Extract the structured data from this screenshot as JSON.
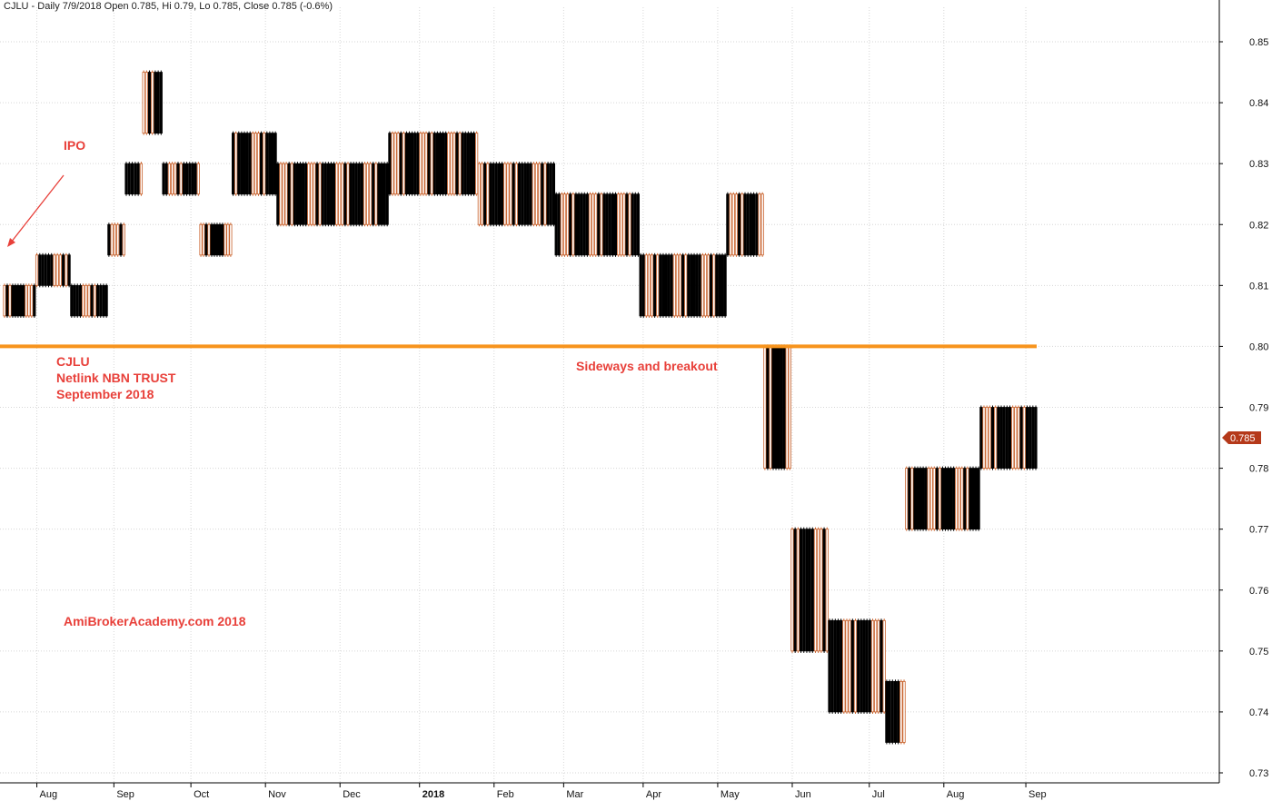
{
  "header": {
    "text": "CJLU - Daily 7/9/2018 Open 0.785, Hi 0.79, Lo 0.785, Close 0.785 (-0.6%)"
  },
  "annotations": {
    "ipo": "IPO",
    "symbol": "CJLU",
    "name": "Netlink NBN TRUST",
    "period": "September 2018",
    "breakout": "Sideways and breakout",
    "watermark": "AmiBrokerAcademy.com  2018"
  },
  "colors": {
    "up": "#c8602a",
    "down": "#000000",
    "support": "#f7941d",
    "annotation": "#e8403a",
    "grid": "#d6d6d6",
    "price_tag": "#b5391a"
  },
  "chart_data": {
    "type": "candlestick",
    "y_axis": {
      "side": "right",
      "ticks": [
        "0.85",
        "0.84",
        "0.83",
        "0.82",
        "0.81",
        "0.80",
        "0.79",
        "0.78",
        "0.77",
        "0.76",
        "0.75",
        "0.74",
        "0.73"
      ],
      "range": [
        0.728,
        0.853
      ]
    },
    "x_axis": {
      "ticks": [
        "Aug",
        "Sep",
        "Oct",
        "Nov",
        "Dec",
        "2018",
        "Feb",
        "Mar",
        "Apr",
        "May",
        "Jun",
        "Jul",
        "Aug",
        "Sep"
      ],
      "bold_ticks": [
        "2018"
      ]
    },
    "grid": true,
    "support_level": 0.8,
    "last_close_label": "0.785",
    "series": [
      {
        "name": "CJLU",
        "values": [
          {
            "from": "2017-07-19",
            "to": "2017-07-31",
            "low": 0.805,
            "high": 0.81
          },
          {
            "from": "2017-08-01",
            "to": "2017-08-14",
            "low": 0.81,
            "high": 0.815
          },
          {
            "from": "2017-08-15",
            "to": "2017-08-29",
            "low": 0.805,
            "high": 0.81
          },
          {
            "from": "2017-08-30",
            "to": "2017-09-05",
            "low": 0.815,
            "high": 0.82
          },
          {
            "from": "2017-09-06",
            "to": "2017-09-12",
            "low": 0.825,
            "high": 0.83
          },
          {
            "from": "2017-09-13",
            "to": "2017-09-20",
            "low": 0.835,
            "high": 0.845
          },
          {
            "from": "2017-09-21",
            "to": "2017-10-05",
            "low": 0.825,
            "high": 0.83
          },
          {
            "from": "2017-10-06",
            "to": "2017-10-18",
            "low": 0.815,
            "high": 0.82
          },
          {
            "from": "2017-10-19",
            "to": "2017-11-05",
            "low": 0.825,
            "high": 0.835
          },
          {
            "from": "2017-11-06",
            "to": "2017-12-20",
            "low": 0.82,
            "high": 0.83
          },
          {
            "from": "2017-12-21",
            "to": "2018-01-25",
            "low": 0.825,
            "high": 0.835
          },
          {
            "from": "2018-01-26",
            "to": "2018-02-25",
            "low": 0.82,
            "high": 0.83
          },
          {
            "from": "2018-02-26",
            "to": "2018-03-31",
            "low": 0.815,
            "high": 0.825
          },
          {
            "from": "2018-04-01",
            "to": "2018-05-05",
            "low": 0.805,
            "high": 0.815
          },
          {
            "from": "2018-05-06",
            "to": "2018-05-20",
            "low": 0.815,
            "high": 0.825
          },
          {
            "from": "2018-05-21",
            "to": "2018-05-31",
            "low": 0.78,
            "high": 0.8
          },
          {
            "from": "2018-06-01",
            "to": "2018-06-15",
            "low": 0.75,
            "high": 0.77
          },
          {
            "from": "2018-06-16",
            "to": "2018-07-08",
            "low": 0.74,
            "high": 0.755
          },
          {
            "from": "2018-07-09",
            "to": "2018-07-16",
            "low": 0.735,
            "high": 0.745
          },
          {
            "from": "2018-07-17",
            "to": "2018-08-15",
            "low": 0.77,
            "high": 0.78
          },
          {
            "from": "2018-08-16",
            "to": "2018-09-07",
            "low": 0.78,
            "high": 0.79
          }
        ]
      }
    ]
  }
}
